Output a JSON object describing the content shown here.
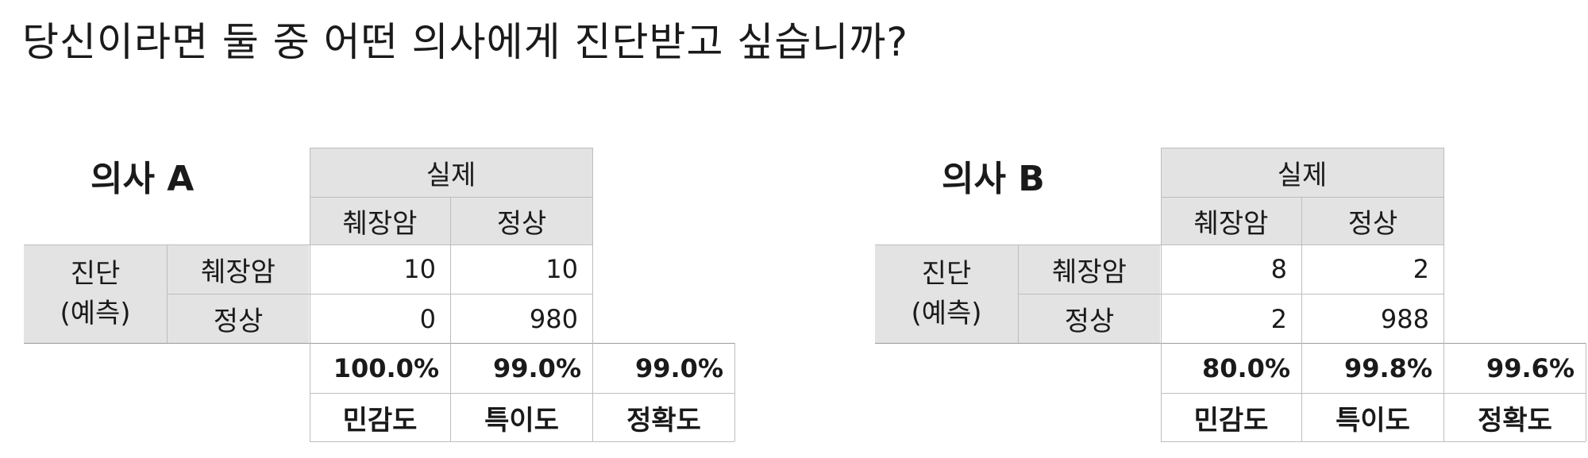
{
  "title": "당신이라면 둘 중 어떤 의사에게 진단받고 싶습니까?",
  "panels": [
    {
      "doctor": "의사 A",
      "actual_header": "실제",
      "actual_cols": [
        "췌장암",
        "정상"
      ],
      "pred_label_1": "진단",
      "pred_label_2": "(예측)",
      "rows": [
        {
          "label": "췌장암",
          "values": [
            "10",
            "10"
          ]
        },
        {
          "label": "정상",
          "values": [
            "0",
            "980"
          ]
        }
      ],
      "metrics": [
        {
          "value": "100.0%",
          "label": "민감도"
        },
        {
          "value": "99.0%",
          "label": "특이도"
        },
        {
          "value": "99.0%",
          "label": "정확도"
        }
      ]
    },
    {
      "doctor": "의사 B",
      "actual_header": "실제",
      "actual_cols": [
        "췌장암",
        "정상"
      ],
      "pred_label_1": "진단",
      "pred_label_2": "(예측)",
      "rows": [
        {
          "label": "췌장암",
          "values": [
            "8",
            "2"
          ]
        },
        {
          "label": "정상",
          "values": [
            "2",
            "988"
          ]
        }
      ],
      "metrics": [
        {
          "value": "80.0%",
          "label": "민감도"
        },
        {
          "value": "99.8%",
          "label": "특이도"
        },
        {
          "value": "99.6%",
          "label": "정확도"
        }
      ]
    }
  ]
}
